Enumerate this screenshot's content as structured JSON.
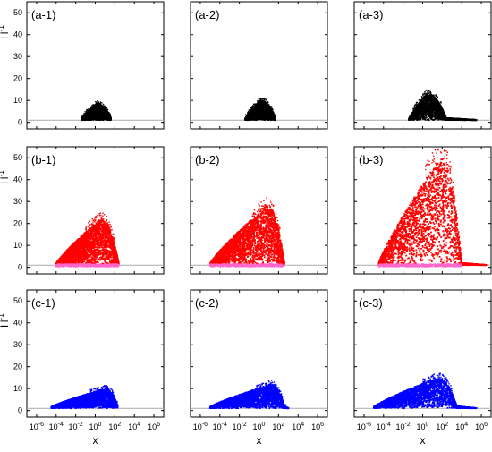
{
  "chart_data": {
    "type": "scatter",
    "x_scale": "log",
    "xlim": [
      1e-07,
      10000000.0
    ],
    "ylim": [
      -3,
      55
    ],
    "xlabel": "x",
    "ylabel": "H",
    "ylabel_superscript": "-1",
    "x_tick_labels": [
      {
        "base": "10",
        "exp": "-6",
        "value": 1e-06
      },
      {
        "base": "10",
        "exp": "-4",
        "value": 0.0001
      },
      {
        "base": "10",
        "exp": "-2",
        "value": 0.01
      },
      {
        "base": "10",
        "exp": "0",
        "value": 1
      },
      {
        "base": "10",
        "exp": "2",
        "value": 100
      },
      {
        "base": "10",
        "exp": "4",
        "value": 10000
      },
      {
        "base": "10",
        "exp": "6",
        "value": 1000000
      }
    ],
    "y_ticks": [
      0,
      10,
      20,
      30,
      40,
      50
    ],
    "reference_line_y": 1,
    "rows": [
      {
        "row": "a",
        "color": "#000000",
        "secondary_color": null
      },
      {
        "row": "b",
        "color": "#ff0000",
        "secondary_color": "#ff66cc"
      },
      {
        "row": "c",
        "color": "#0000ff",
        "secondary_color": null
      }
    ],
    "panels": [
      {
        "label": "(a-1)",
        "row": 0,
        "col": 0,
        "cloud": {
          "xmin_log": -1.4,
          "xpeak_log": 0.1,
          "xmax_log": 1.6,
          "ymax": 8.5,
          "tail_log": 1.6
        }
      },
      {
        "label": "(a-2)",
        "row": 0,
        "col": 1,
        "cloud": {
          "xmin_log": -1.4,
          "xpeak_log": 0.1,
          "xmax_log": 1.7,
          "ymax": 10,
          "tail_log": 1.7
        }
      },
      {
        "label": "(a-3)",
        "row": 0,
        "col": 2,
        "cloud": {
          "xmin_log": -1.4,
          "xpeak_log": 0.4,
          "xmax_log": 2.4,
          "ymax": 13,
          "tail_log": 5.5
        }
      },
      {
        "label": "(b-1)",
        "row": 1,
        "col": 0,
        "cloud": {
          "xmin_log": -4.0,
          "xpeak_log": 0.5,
          "xmax_log": 2.4,
          "ymax": 22,
          "tail_log": 2.4
        }
      },
      {
        "label": "(b-2)",
        "row": 1,
        "col": 1,
        "cloud": {
          "xmin_log": -5.0,
          "xpeak_log": 0.8,
          "xmax_log": 2.6,
          "ymax": 28,
          "tail_log": 2.6
        }
      },
      {
        "label": "(b-3)",
        "row": 1,
        "col": 2,
        "cloud": {
          "xmin_log": -4.5,
          "xpeak_log": 1.8,
          "xmax_log": 4.0,
          "ymax": 50,
          "tail_log": 6.5
        }
      },
      {
        "label": "(c-1)",
        "row": 2,
        "col": 0,
        "cloud": {
          "xmin_log": -4.5,
          "xpeak_log": 1.0,
          "xmax_log": 2.3,
          "ymax": 10,
          "tail_log": 2.3
        }
      },
      {
        "label": "(c-2)",
        "row": 2,
        "col": 1,
        "cloud": {
          "xmin_log": -5.0,
          "xpeak_log": 1.2,
          "xmax_log": 2.6,
          "ymax": 12,
          "tail_log": 3.0
        }
      },
      {
        "label": "(c-3)",
        "row": 2,
        "col": 2,
        "cloud": {
          "xmin_log": -5.0,
          "xpeak_log": 1.5,
          "xmax_log": 3.5,
          "ymax": 15,
          "tail_log": 5.5
        }
      }
    ]
  }
}
